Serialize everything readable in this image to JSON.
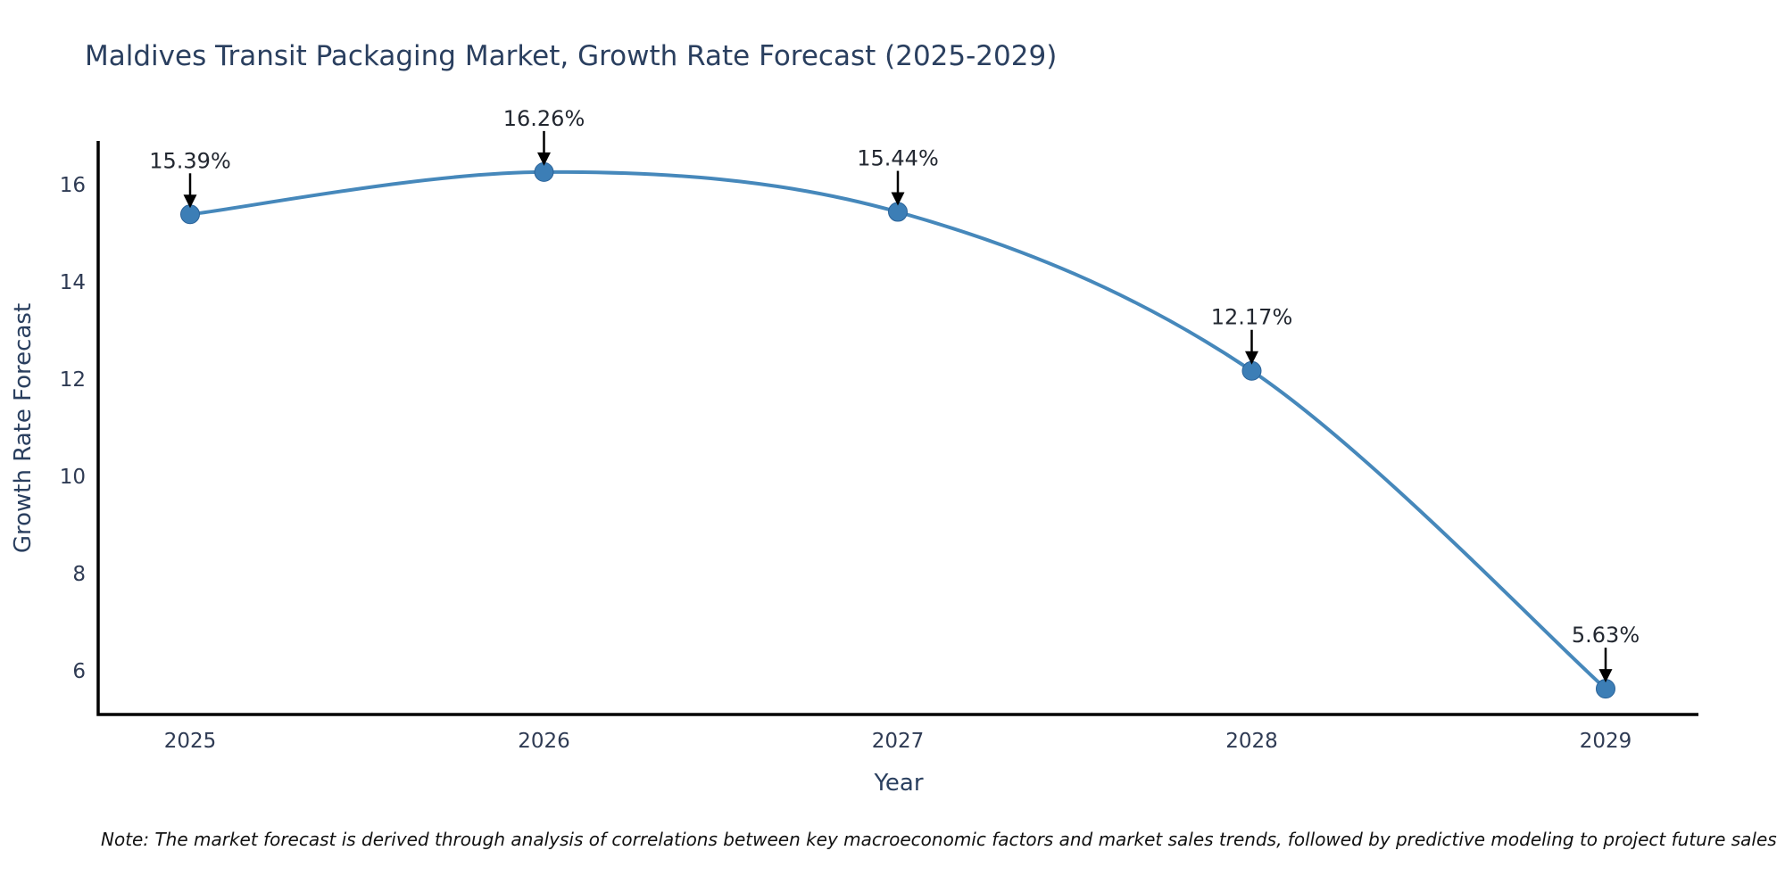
{
  "chart": {
    "note": "Note: The market forecast is derived through analysis of correlations between key macroeconomic factors and market sales trends, followed by predictive modeling to project future sales",
    "colors": {
      "line": "#4688bb",
      "marker_fill": "#3c7eb6",
      "marker_edge": "#2a6298",
      "axis_line": "#000000",
      "title_text": "#2a3f5f",
      "tick_text": "#2f3b54",
      "annotation_text": "#222730",
      "arrow": "#000000",
      "background": "#ffffff"
    }
  },
  "chart_data": {
    "type": "line",
    "title": "Maldives Transit Packaging Market, Growth Rate Forecast (2025-2029)",
    "xlabel": "Year",
    "ylabel": "Growth Rate Forecast",
    "x": [
      2025,
      2026,
      2027,
      2028,
      2029
    ],
    "series": [
      {
        "name": "Growth Rate Forecast",
        "values": [
          15.39,
          16.26,
          15.44,
          12.17,
          5.63
        ]
      }
    ],
    "point_labels": [
      "15.39%",
      "16.26%",
      "15.44%",
      "12.17%",
      "5.63%"
    ],
    "yticks": [
      6,
      8,
      10,
      12,
      14,
      16
    ],
    "ylim": [
      5.1,
      16.9
    ],
    "line_shape": "spline",
    "grid": false,
    "legend_position": "none",
    "annotations_have_arrows": true
  }
}
